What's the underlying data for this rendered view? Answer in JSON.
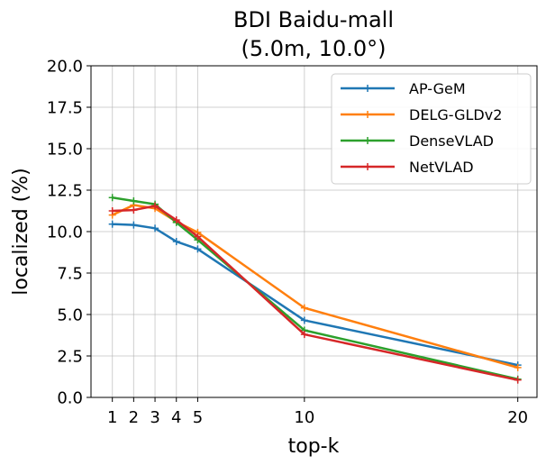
{
  "chart_data": {
    "type": "line",
    "title": [
      "BDI Baidu-mall",
      "(5.0m, 10.0°)"
    ],
    "xlabel": "top-k",
    "ylabel": "localized (%)",
    "x": [
      1,
      2,
      3,
      4,
      5,
      10,
      20
    ],
    "xticks": [
      "1",
      "2",
      "3",
      "4",
      "5",
      "10",
      "20"
    ],
    "yticks": [
      "0.0",
      "2.5",
      "5.0",
      "7.5",
      "10.0",
      "12.5",
      "15.0",
      "17.5",
      "20.0"
    ],
    "ylim": [
      0,
      20
    ],
    "grid": true,
    "legend_position": "top-right",
    "series": [
      {
        "name": "AP-GeM",
        "color": "#1f77b4",
        "values": [
          10.45,
          10.4,
          10.2,
          9.4,
          8.95,
          4.65,
          1.95
        ]
      },
      {
        "name": "DELG-GLDv2",
        "color": "#ff7f0e",
        "values": [
          11.0,
          11.6,
          11.4,
          10.6,
          9.95,
          5.4,
          1.8
        ]
      },
      {
        "name": "DenseVLAD",
        "color": "#2ca02c",
        "values": [
          12.05,
          11.85,
          11.65,
          10.55,
          9.5,
          4.05,
          1.1
        ]
      },
      {
        "name": "NetVLAD",
        "color": "#d62728",
        "values": [
          11.25,
          11.3,
          11.55,
          10.7,
          9.7,
          3.8,
          1.05
        ]
      }
    ]
  }
}
